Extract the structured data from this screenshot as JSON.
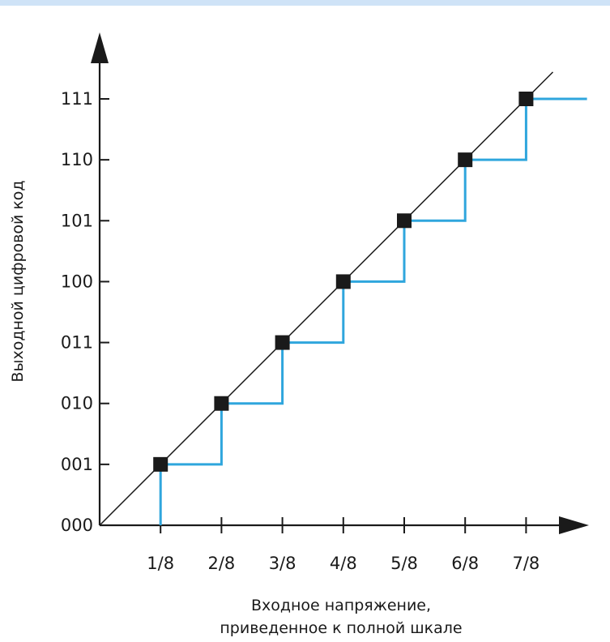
{
  "chart_data": {
    "type": "line",
    "title": "",
    "xlabel_line1": "Входное напряжение,",
    "xlabel_line2": "приведенное к полной шкале",
    "ylabel": "Выходной цифровой код",
    "x_ticks": [
      "1/8",
      "2/8",
      "3/8",
      "4/8",
      "5/8",
      "6/8",
      "7/8"
    ],
    "y_ticks": [
      "000",
      "001",
      "010",
      "011",
      "100",
      "101",
      "110",
      "111"
    ],
    "xlim": [
      0,
      1.08
    ],
    "ylim": [
      0,
      7
    ],
    "series": [
      {
        "style": "staircase",
        "color": "#2fa6dd",
        "x": [
          0.125,
          0.125,
          0.25,
          0.25,
          0.375,
          0.375,
          0.5,
          0.5,
          0.625,
          0.625,
          0.75,
          0.75,
          0.875,
          0.875,
          1.0
        ],
        "y": [
          0,
          1,
          1,
          2,
          2,
          3,
          3,
          4,
          4,
          5,
          5,
          6,
          6,
          7,
          7
        ]
      },
      {
        "style": "ideal-line",
        "color": "#1a1a1a",
        "x": [
          0,
          0.93
        ],
        "y": [
          0,
          7.44
        ]
      }
    ],
    "markers": {
      "color": "#1a1a1a",
      "x": [
        0.125,
        0.25,
        0.375,
        0.5,
        0.625,
        0.75,
        0.875
      ],
      "y": [
        1,
        2,
        3,
        4,
        5,
        6,
        7
      ]
    }
  },
  "colors": {
    "top_band": "#cfe3f7",
    "axis": "#1a1a1a",
    "staircase": "#2fa6dd"
  }
}
